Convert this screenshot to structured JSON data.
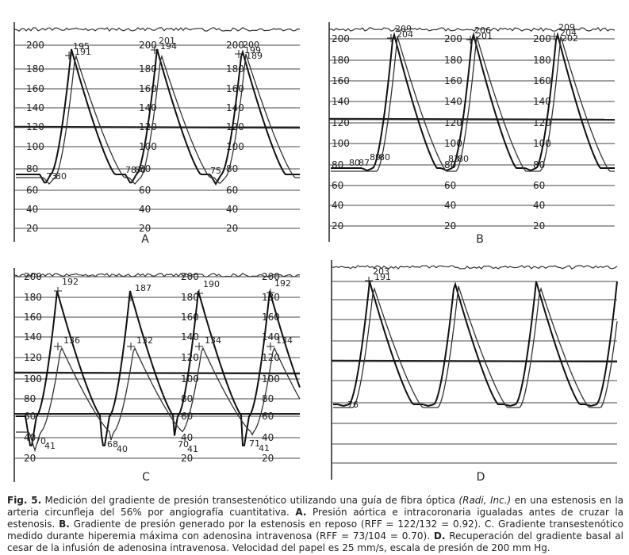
{
  "figure": {
    "panels": [
      {
        "id": "A",
        "letter": "A",
        "ticks": [
          "200",
          "180",
          "160",
          "140",
          "120",
          "100",
          "80",
          "60",
          "40",
          "20"
        ],
        "tick_cols": 3,
        "peaks": [
          {
            "sys": [
              "195",
              "191"
            ]
          },
          {
            "sys": [
              "201",
              "194"
            ]
          },
          {
            "sys": [
              "200",
              "199",
              "189"
            ]
          }
        ],
        "troughs": [
          "73",
          "80",
          "78",
          "80",
          "75"
        ]
      },
      {
        "id": "B",
        "letter": "B",
        "ticks": [
          "200",
          "180",
          "160",
          "140",
          "120",
          "100",
          "80",
          "60",
          "40",
          "20"
        ],
        "tick_cols": 3,
        "peaks": [
          {
            "sys": [
              "209",
              "204"
            ]
          },
          {
            "sys": [
              "206",
              "201"
            ]
          },
          {
            "sys": [
              "209",
              "204",
              "202"
            ]
          }
        ],
        "troughs": [
          "80",
          "87",
          "89",
          "80",
          "83",
          "80"
        ]
      },
      {
        "id": "C",
        "letter": "C",
        "ticks": [
          "200",
          "180",
          "160",
          "140",
          "120",
          "100",
          "80",
          "60",
          "40",
          "20"
        ],
        "tick_cols": 3,
        "peaks": [
          {
            "sys": [
              "192"
            ],
            "dist": "136"
          },
          {
            "sys": [
              "187"
            ],
            "dist": "132"
          },
          {
            "sys": [
              "190"
            ],
            "dist": "134"
          },
          {
            "sys": [
              "192"
            ],
            "dist": "134"
          }
        ],
        "troughs": [
          "70",
          "41",
          "68",
          "40",
          "70",
          "41",
          "71",
          "41"
        ]
      },
      {
        "id": "D",
        "letter": "D",
        "ticks": [],
        "tick_cols": 0,
        "peaks": [
          {
            "sys": [
              "203",
              "191"
            ]
          }
        ],
        "troughs": [
          "76"
        ]
      }
    ]
  },
  "caption": {
    "label": "Fig. 5.",
    "part1": " Medición del gradiente de presión transestenótico utilizando una guía de fibra óptica ",
    "device": "(Radi, Inc.)",
    "part2": " en una estenosis en la arteria circunfleja del 56% por angiografía cuantitativa. ",
    "a_label": "A.",
    "a_text": " Presión aórtica e intracoronaria igualadas antes de cruzar la estenosis. ",
    "b_label": "B.",
    "b_text": " Gradiente de presión generado por la estenosis en reposo (RFF = 122/132 = 0.92). C. Gradiente transestenótico medido durante hiperemia máxima con adenosina intravenosa (RFF = 73/104 = 0.70). ",
    "d_label": "D.",
    "d_text": " Recuperación del gradiente basal al cesar de la infusión de adenosina intravenosa. Velocidad del papel es 25 mm/s, escala de presión de 200 mm Hg."
  }
}
